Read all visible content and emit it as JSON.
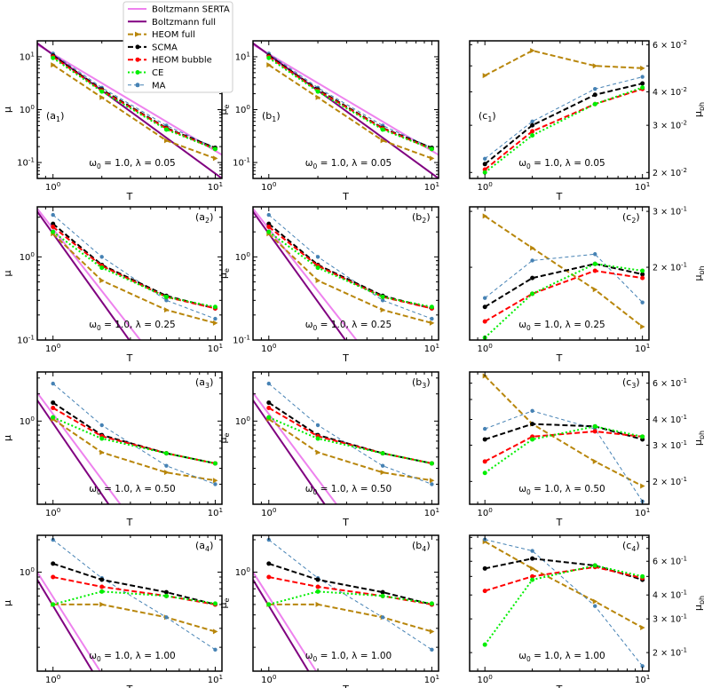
{
  "chart_data": {
    "type": "line",
    "layout": "4 rows x 3 columns of log-log panels",
    "legend": {
      "placement": "top-center",
      "entries": [
        {
          "name": "Boltzmann SERTA",
          "color": "#ee82ee",
          "style": "solid"
        },
        {
          "name": "Boltzmann full",
          "color": "#800080",
          "style": "solid"
        },
        {
          "name": "HEOM full",
          "color": "#b8860b",
          "style": "dashed",
          "marker": "triangle-right"
        },
        {
          "name": "SCMA",
          "color": "#000000",
          "style": "dashed",
          "marker": "circle"
        },
        {
          "name": "HEOM bubble",
          "color": "#ff0000",
          "style": "dashed",
          "marker": "circle"
        },
        {
          "name": "CE",
          "color": "#00ee00",
          "style": "dotted",
          "marker": "circle"
        },
        {
          "name": "MA",
          "color": "#4682b4",
          "style": "dashed-thin",
          "marker": "circle"
        }
      ]
    },
    "x": [
      1,
      2,
      5,
      10
    ],
    "xlabel": "T",
    "xlim": [
      0.8,
      11
    ],
    "xticks": [
      "10^0",
      "10^1"
    ],
    "columns": [
      {
        "id": "a",
        "ylabel": "μ"
      },
      {
        "id": "b",
        "ylabel": "μe"
      },
      {
        "id": "c",
        "ylabel": "μph"
      }
    ],
    "rows": [
      {
        "lambda_label": "ω0 = 1.0, λ = 0.05",
        "a": {
          "tag": "(a1)",
          "ylim": [
            0.05,
            20
          ],
          "yticks": [
            {
              "v": 0.1,
              "t": "10^-1"
            },
            {
              "v": 1,
              "t": "10^0"
            },
            {
              "v": 10,
              "t": "10^1"
            }
          ],
          "boltz_serta": [
            [
              0.8,
              17
            ],
            [
              11,
              0.14
            ]
          ],
          "boltz_full": [
            [
              0.8,
              18
            ],
            [
              11,
              0.05
            ]
          ],
          "series": {
            "HEOM full": [
              7,
              1.7,
              0.26,
              0.12
            ],
            "SCMA": [
              10.5,
              2.4,
              0.45,
              0.19
            ],
            "HEOM bubble": [
              10,
              2.3,
              0.44,
              0.18
            ],
            "CE": [
              9.5,
              2.2,
              0.42,
              0.18
            ],
            "MA": [
              11.5,
              2.6,
              0.5,
              0.19
            ]
          }
        },
        "b": {
          "tag": "(b1)",
          "ylim": [
            0.05,
            20
          ],
          "yticks": [
            {
              "v": 0.1,
              "t": "10^-1"
            },
            {
              "v": 1,
              "t": "10^0"
            },
            {
              "v": 10,
              "t": "10^1"
            }
          ],
          "boltz_serta": [
            [
              0.8,
              17
            ],
            [
              11,
              0.14
            ]
          ],
          "boltz_full": [
            [
              0.8,
              18
            ],
            [
              11,
              0.05
            ]
          ],
          "series": {
            "HEOM full": [
              7,
              1.7,
              0.26,
              0.12
            ],
            "SCMA": [
              10.5,
              2.4,
              0.45,
              0.19
            ],
            "HEOM bubble": [
              10,
              2.3,
              0.44,
              0.18
            ],
            "CE": [
              9.5,
              2.2,
              0.42,
              0.18
            ],
            "MA": [
              11.5,
              2.6,
              0.5,
              0.19
            ]
          }
        },
        "c": {
          "tag": "(c1)",
          "ylim": [
            0.019,
            0.062
          ],
          "yticks": [
            {
              "v": 0.02,
              "t": "2 × 10^-2"
            },
            {
              "v": 0.03,
              "t": "3 × 10^-2"
            },
            {
              "v": 0.04,
              "t": "4 × 10^-2"
            },
            {
              "v": 0.06,
              "t": "6 × 10^-2"
            }
          ],
          "series": {
            "HEOM full": [
              0.046,
              0.057,
              0.05,
              0.049
            ],
            "SCMA": [
              0.0215,
              0.03,
              0.039,
              0.043
            ],
            "HEOM bubble": [
              0.0205,
              0.0285,
              0.036,
              0.041
            ],
            "CE": [
              0.02,
              0.0275,
              0.036,
              0.0415
            ],
            "MA": [
              0.0225,
              0.031,
              0.041,
              0.0455
            ]
          }
        }
      },
      {
        "lambda_label": "ω0 = 1.0, λ = 0.25",
        "a": {
          "tag": "(a2)",
          "ylim": [
            0.1,
            4
          ],
          "yticks": [
            {
              "v": 0.1,
              "t": "10^-1"
            },
            {
              "v": 1,
              "t": "10^0"
            }
          ],
          "boltz_serta": [
            [
              0.8,
              3.8
            ],
            [
              3.45,
              0.1
            ]
          ],
          "boltz_full": [
            [
              0.8,
              3.5
            ],
            [
              2.95,
              0.1
            ]
          ],
          "series": {
            "HEOM full": [
              1.9,
              0.52,
              0.23,
              0.16
            ],
            "SCMA": [
              2.5,
              0.8,
              0.34,
              0.24
            ],
            "HEOM bubble": [
              2.3,
              0.78,
              0.33,
              0.24
            ],
            "CE": [
              2.0,
              0.74,
              0.33,
              0.25
            ],
            "MA": [
              3.2,
              1.0,
              0.3,
              0.18
            ]
          }
        },
        "b": {
          "tag": "(b2)",
          "ylim": [
            0.1,
            4
          ],
          "yticks": [
            {
              "v": 0.1,
              "t": "10^-1"
            },
            {
              "v": 1,
              "t": "10^0"
            }
          ],
          "boltz_serta": [
            [
              0.8,
              3.8
            ],
            [
              3.45,
              0.1
            ]
          ],
          "boltz_full": [
            [
              0.8,
              3.5
            ],
            [
              2.95,
              0.1
            ]
          ],
          "series": {
            "HEOM full": [
              1.9,
              0.52,
              0.23,
              0.16
            ],
            "SCMA": [
              2.5,
              0.8,
              0.34,
              0.24
            ],
            "HEOM bubble": [
              2.3,
              0.78,
              0.33,
              0.24
            ],
            "CE": [
              2.0,
              0.74,
              0.33,
              0.25
            ],
            "MA": [
              3.2,
              1.0,
              0.3,
              0.18
            ]
          }
        },
        "c": {
          "tag": "(c2)",
          "ylim": [
            0.118,
            0.31
          ],
          "yticks": [
            {
              "v": 0.2,
              "t": "2 × 10^-1"
            },
            {
              "v": 0.3,
              "t": "3 × 10^-1"
            }
          ],
          "series": {
            "HEOM full": [
              0.29,
              0.23,
              0.17,
              0.13
            ],
            "SCMA": [
              0.15,
              0.185,
              0.205,
              0.19
            ],
            "HEOM bubble": [
              0.135,
              0.165,
              0.195,
              0.185
            ],
            "CE": [
              0.12,
              0.165,
              0.205,
              0.195
            ],
            "MA": [
              0.16,
              0.21,
              0.22,
              0.155
            ]
          }
        }
      },
      {
        "lambda_label": "ω0 = 1.0, λ = 0.50",
        "a": {
          "tag": "(a3)",
          "ylim": [
            0.12,
            3.5
          ],
          "yticks": [
            {
              "v": 1,
              "t": "10^0"
            }
          ],
          "boltz_serta": [
            [
              0.8,
              2.05
            ],
            [
              2.6,
              0.12
            ]
          ],
          "boltz_full": [
            [
              0.8,
              1.7
            ],
            [
              2.2,
              0.12
            ]
          ],
          "series": {
            "HEOM full": [
              1.05,
              0.45,
              0.27,
              0.22
            ],
            "SCMA": [
              1.6,
              0.7,
              0.44,
              0.34
            ],
            "HEOM bubble": [
              1.4,
              0.68,
              0.44,
              0.34
            ],
            "CE": [
              1.1,
              0.64,
              0.44,
              0.34
            ],
            "MA": [
              2.6,
              0.9,
              0.32,
              0.2
            ]
          }
        },
        "b": {
          "tag": "(b3)",
          "ylim": [
            0.12,
            3.5
          ],
          "yticks": [
            {
              "v": 1,
              "t": "10^0"
            }
          ],
          "boltz_serta": [
            [
              0.8,
              2.05
            ],
            [
              2.6,
              0.12
            ]
          ],
          "boltz_full": [
            [
              0.8,
              1.7
            ],
            [
              2.2,
              0.12
            ]
          ],
          "series": {
            "HEOM full": [
              1.05,
              0.45,
              0.27,
              0.22
            ],
            "SCMA": [
              1.6,
              0.7,
              0.44,
              0.34
            ],
            "HEOM bubble": [
              1.4,
              0.68,
              0.44,
              0.34
            ],
            "CE": [
              1.1,
              0.64,
              0.44,
              0.34
            ],
            "MA": [
              2.6,
              0.9,
              0.32,
              0.2
            ]
          }
        },
        "c": {
          "tag": "(c3)",
          "ylim": [
            0.155,
            0.68
          ],
          "yticks": [
            {
              "v": 0.2,
              "t": "2 × 10^-1"
            },
            {
              "v": 0.3,
              "t": "3 × 10^-1"
            },
            {
              "v": 0.4,
              "t": "4 × 10^-1"
            },
            {
              "v": 0.6,
              "t": "6 × 10^-1"
            }
          ],
          "series": {
            "HEOM full": [
              0.65,
              0.38,
              0.25,
              0.19
            ],
            "SCMA": [
              0.32,
              0.38,
              0.37,
              0.32
            ],
            "HEOM bubble": [
              0.25,
              0.33,
              0.35,
              0.33
            ],
            "CE": [
              0.22,
              0.32,
              0.37,
              0.33
            ],
            "MA": [
              0.36,
              0.44,
              0.36,
              0.16
            ]
          }
        }
      },
      {
        "lambda_label": "ω0 = 1.0, λ = 1.00",
        "a": {
          "tag": "(a4)",
          "ylim": [
            0.12,
            2.2
          ],
          "yticks": [
            {
              "v": 1,
              "t": "10^0"
            }
          ],
          "boltz_serta": [
            [
              0.8,
              1.0
            ],
            [
              1.95,
              0.12
            ]
          ],
          "boltz_full": [
            [
              0.8,
              0.85
            ],
            [
              1.75,
              0.12
            ]
          ],
          "series": {
            "HEOM full": [
              0.5,
              0.5,
              0.38,
              0.28
            ],
            "SCMA": [
              1.2,
              0.85,
              0.65,
              0.5
            ],
            "HEOM bubble": [
              0.9,
              0.73,
              0.6,
              0.5
            ],
            "CE": [
              0.5,
              0.66,
              0.6,
              0.51
            ],
            "MA": [
              2.0,
              0.88,
              0.38,
              0.19
            ]
          }
        },
        "b": {
          "tag": "(b4)",
          "ylim": [
            0.12,
            2.2
          ],
          "yticks": [
            {
              "v": 1,
              "t": "10^0"
            }
          ],
          "boltz_serta": [
            [
              0.8,
              1.0
            ],
            [
              1.95,
              0.12
            ]
          ],
          "boltz_full": [
            [
              0.8,
              0.85
            ],
            [
              1.75,
              0.12
            ]
          ],
          "series": {
            "HEOM full": [
              0.5,
              0.5,
              0.38,
              0.28
            ],
            "SCMA": [
              1.2,
              0.85,
              0.65,
              0.5
            ],
            "HEOM bubble": [
              0.9,
              0.73,
              0.6,
              0.5
            ],
            "CE": [
              0.5,
              0.66,
              0.6,
              0.51
            ],
            "MA": [
              2.0,
              0.88,
              0.38,
              0.19
            ]
          }
        },
        "c": {
          "tag": "(c4)",
          "ylim": [
            0.16,
            0.82
          ],
          "yticks": [
            {
              "v": 0.2,
              "t": "2 × 10^-1"
            },
            {
              "v": 0.3,
              "t": "3 × 10^-1"
            },
            {
              "v": 0.4,
              "t": "4 × 10^-1"
            },
            {
              "v": 0.6,
              "t": "6 × 10^-1"
            }
          ],
          "series": {
            "HEOM full": [
              0.76,
              0.55,
              0.37,
              0.27
            ],
            "SCMA": [
              0.55,
              0.62,
              0.57,
              0.48
            ],
            "HEOM bubble": [
              0.42,
              0.5,
              0.56,
              0.49
            ],
            "CE": [
              0.22,
              0.48,
              0.57,
              0.5
            ],
            "MA": [
              0.78,
              0.68,
              0.35,
              0.17
            ]
          }
        }
      }
    ]
  }
}
